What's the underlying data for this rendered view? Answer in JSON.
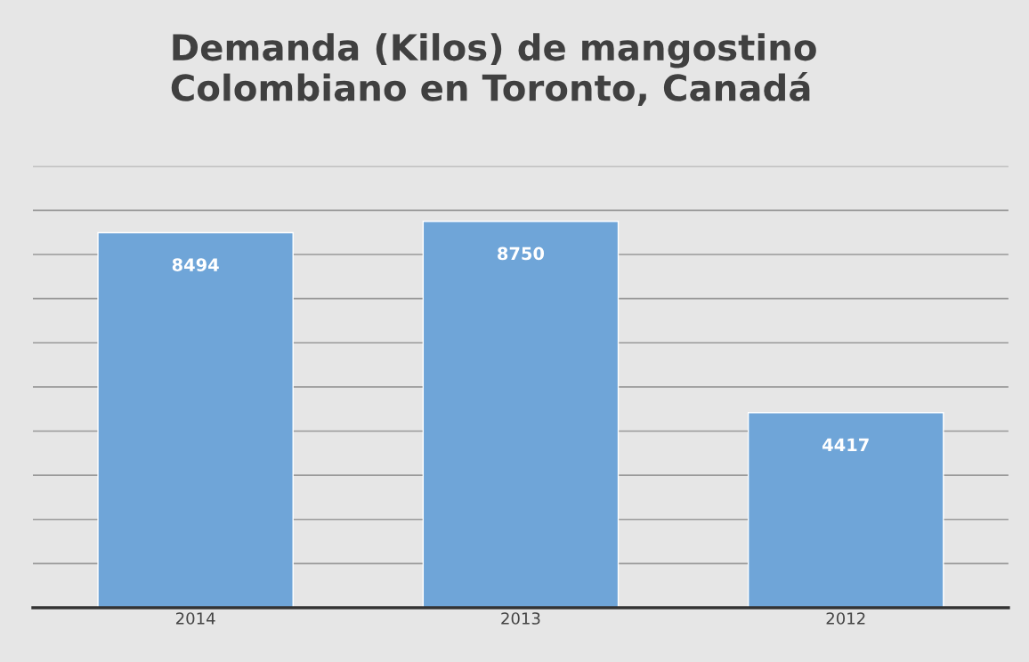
{
  "chart_data": {
    "type": "bar",
    "title": "Demanda (Kilos) de mangostino\nColombiano en Toronto, Canadá",
    "categories": [
      "2014",
      "2013",
      "2012"
    ],
    "values": [
      8494,
      8750,
      4417
    ],
    "color": "#6fa5d8",
    "ylim": [
      0,
      10000
    ],
    "yticks": [
      {
        "value": 0,
        "label": null
      },
      {
        "value": 1000,
        "label": null
      },
      {
        "value": 2000,
        "label": null
      },
      {
        "value": 3000,
        "label": null
      },
      {
        "value": 4000,
        "label": null
      },
      {
        "value": 5000,
        "label": null
      },
      {
        "value": 6000,
        "label": null
      },
      {
        "value": 7000,
        "label": null
      },
      {
        "value": 8000,
        "label": null
      },
      {
        "value": 9000,
        "label": null
      },
      {
        "value": 10000,
        "label": null
      }
    ],
    "grid": "y",
    "tick_labels": "x",
    "data_labels": true
  }
}
